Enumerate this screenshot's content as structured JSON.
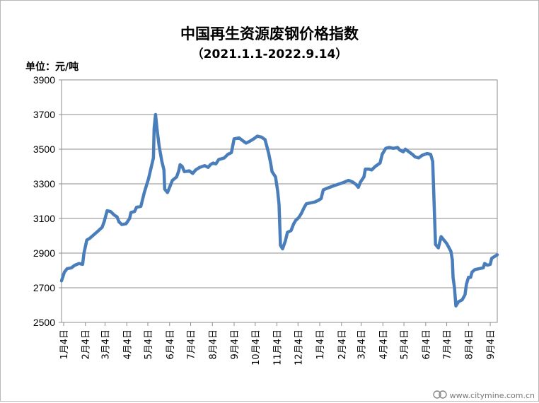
{
  "chart_data": {
    "type": "line",
    "title": "中国再生资源废钢价格指数",
    "subtitle": "（2021.1.1-2022.9.14）",
    "unit_label": "单位：元/吨",
    "ylim": [
      2500,
      3900
    ],
    "yticks": [
      2500,
      2700,
      2900,
      3100,
      3300,
      3500,
      3700,
      3900
    ],
    "grid": true,
    "legend": "none",
    "line_color": "#4a7ebb",
    "x_tick_labels": [
      "1月4日",
      "2月4日",
      "3月4日",
      "4月4日",
      "5月4日",
      "6月4日",
      "7月4日",
      "8月4日",
      "9月4日",
      "10月4日",
      "11月4日",
      "12月4日",
      "1月4日",
      "2月4日",
      "3月4日",
      "4月4日",
      "5月4日",
      "6月4日",
      "7月4日",
      "8月4日",
      "9月4日"
    ],
    "x_tick_dates": [
      "2021-01-04",
      "2021-02-04",
      "2021-03-04",
      "2021-04-04",
      "2021-05-04",
      "2021-06-04",
      "2021-07-04",
      "2021-08-04",
      "2021-09-04",
      "2021-10-04",
      "2021-11-04",
      "2021-12-04",
      "2022-01-04",
      "2022-02-04",
      "2022-03-04",
      "2022-04-04",
      "2022-05-04",
      "2022-06-04",
      "2022-07-04",
      "2022-08-04",
      "2022-09-04"
    ],
    "x_start": "2021-01-01",
    "x_end": "2022-09-14",
    "series": [
      {
        "name": "",
        "points": [
          [
            "2021-01-01",
            2740
          ],
          [
            "2021-01-05",
            2790
          ],
          [
            "2021-01-09",
            2810
          ],
          [
            "2021-01-15",
            2815
          ],
          [
            "2021-01-20",
            2830
          ],
          [
            "2021-01-26",
            2840
          ],
          [
            "2021-01-31",
            2835
          ],
          [
            "2021-02-02",
            2900
          ],
          [
            "2021-02-06",
            2975
          ],
          [
            "2021-02-10",
            2985
          ],
          [
            "2021-02-20",
            3020
          ],
          [
            "2021-02-28",
            3050
          ],
          [
            "2021-03-03",
            3085
          ],
          [
            "2021-03-07",
            3145
          ],
          [
            "2021-03-12",
            3140
          ],
          [
            "2021-03-17",
            3120
          ],
          [
            "2021-03-21",
            3110
          ],
          [
            "2021-03-24",
            3080
          ],
          [
            "2021-03-28",
            3065
          ],
          [
            "2021-04-03",
            3070
          ],
          [
            "2021-04-08",
            3100
          ],
          [
            "2021-04-10",
            3135
          ],
          [
            "2021-04-15",
            3140
          ],
          [
            "2021-04-18",
            3165
          ],
          [
            "2021-04-24",
            3170
          ],
          [
            "2021-04-29",
            3250
          ],
          [
            "2021-05-05",
            3330
          ],
          [
            "2021-05-12",
            3450
          ],
          [
            "2021-05-13",
            3620
          ],
          [
            "2021-05-15",
            3700
          ],
          [
            "2021-05-17",
            3620
          ],
          [
            "2021-05-20",
            3520
          ],
          [
            "2021-05-24",
            3430
          ],
          [
            "2021-05-27",
            3380
          ],
          [
            "2021-05-28",
            3270
          ],
          [
            "2021-06-01",
            3250
          ],
          [
            "2021-06-05",
            3290
          ],
          [
            "2021-06-08",
            3320
          ],
          [
            "2021-06-14",
            3340
          ],
          [
            "2021-06-17",
            3375
          ],
          [
            "2021-06-19",
            3410
          ],
          [
            "2021-06-22",
            3400
          ],
          [
            "2021-06-25",
            3370
          ],
          [
            "2021-07-02",
            3375
          ],
          [
            "2021-07-07",
            3360
          ],
          [
            "2021-07-11",
            3380
          ],
          [
            "2021-07-17",
            3395
          ],
          [
            "2021-07-24",
            3405
          ],
          [
            "2021-07-29",
            3395
          ],
          [
            "2021-08-01",
            3410
          ],
          [
            "2021-08-05",
            3420
          ],
          [
            "2021-08-09",
            3415
          ],
          [
            "2021-08-13",
            3440
          ],
          [
            "2021-08-21",
            3450
          ],
          [
            "2021-08-26",
            3470
          ],
          [
            "2021-08-31",
            3480
          ],
          [
            "2021-09-04",
            3560
          ],
          [
            "2021-09-11",
            3565
          ],
          [
            "2021-09-16",
            3550
          ],
          [
            "2021-09-21",
            3535
          ],
          [
            "2021-09-26",
            3545
          ],
          [
            "2021-10-02",
            3560
          ],
          [
            "2021-10-07",
            3575
          ],
          [
            "2021-10-13",
            3570
          ],
          [
            "2021-10-18",
            3555
          ],
          [
            "2021-10-23",
            3480
          ],
          [
            "2021-10-26",
            3420
          ],
          [
            "2021-10-28",
            3370
          ],
          [
            "2021-11-02",
            3340
          ],
          [
            "2021-11-05",
            3260
          ],
          [
            "2021-11-07",
            3180
          ],
          [
            "2021-11-09",
            2945
          ],
          [
            "2021-11-12",
            2925
          ],
          [
            "2021-11-16",
            2970
          ],
          [
            "2021-11-19",
            3020
          ],
          [
            "2021-11-24",
            3030
          ],
          [
            "2021-11-28",
            3070
          ],
          [
            "2021-12-01",
            3090
          ],
          [
            "2021-12-05",
            3105
          ],
          [
            "2021-12-09",
            3130
          ],
          [
            "2021-12-13",
            3165
          ],
          [
            "2021-12-16",
            3185
          ],
          [
            "2021-12-22",
            3190
          ],
          [
            "2021-12-28",
            3195
          ],
          [
            "2022-01-02",
            3205
          ],
          [
            "2022-01-06",
            3215
          ],
          [
            "2022-01-09",
            3265
          ],
          [
            "2022-01-15",
            3275
          ],
          [
            "2022-01-25",
            3290
          ],
          [
            "2022-02-05",
            3305
          ],
          [
            "2022-02-14",
            3320
          ],
          [
            "2022-02-20",
            3310
          ],
          [
            "2022-02-25",
            3295
          ],
          [
            "2022-02-28",
            3280
          ],
          [
            "2022-03-03",
            3310
          ],
          [
            "2022-03-08",
            3340
          ],
          [
            "2022-03-10",
            3385
          ],
          [
            "2022-03-15",
            3385
          ],
          [
            "2022-03-19",
            3380
          ],
          [
            "2022-03-24",
            3400
          ],
          [
            "2022-03-31",
            3420
          ],
          [
            "2022-04-03",
            3470
          ],
          [
            "2022-04-08",
            3505
          ],
          [
            "2022-04-13",
            3510
          ],
          [
            "2022-04-19",
            3505
          ],
          [
            "2022-04-25",
            3510
          ],
          [
            "2022-04-28",
            3495
          ],
          [
            "2022-05-03",
            3485
          ],
          [
            "2022-05-06",
            3500
          ],
          [
            "2022-05-11",
            3485
          ],
          [
            "2022-05-16",
            3470
          ],
          [
            "2022-05-20",
            3455
          ],
          [
            "2022-05-25",
            3450
          ],
          [
            "2022-05-30",
            3465
          ],
          [
            "2022-06-06",
            3475
          ],
          [
            "2022-06-11",
            3470
          ],
          [
            "2022-06-14",
            3430
          ],
          [
            "2022-06-18",
            2950
          ],
          [
            "2022-06-22",
            2930
          ],
          [
            "2022-06-26",
            2995
          ],
          [
            "2022-07-04",
            2955
          ],
          [
            "2022-07-10",
            2910
          ],
          [
            "2022-07-12",
            2860
          ],
          [
            "2022-07-13",
            2760
          ],
          [
            "2022-07-15",
            2700
          ],
          [
            "2022-07-17",
            2595
          ],
          [
            "2022-07-21",
            2620
          ],
          [
            "2022-07-26",
            2630
          ],
          [
            "2022-07-30",
            2660
          ],
          [
            "2022-08-01",
            2720
          ],
          [
            "2022-08-04",
            2760
          ],
          [
            "2022-08-07",
            2760
          ],
          [
            "2022-08-09",
            2790
          ],
          [
            "2022-08-13",
            2805
          ],
          [
            "2022-08-19",
            2810
          ],
          [
            "2022-08-25",
            2815
          ],
          [
            "2022-08-27",
            2840
          ],
          [
            "2022-08-31",
            2830
          ],
          [
            "2022-09-04",
            2835
          ],
          [
            "2022-09-06",
            2870
          ],
          [
            "2022-09-10",
            2880
          ],
          [
            "2022-09-14",
            2890
          ]
        ]
      }
    ]
  },
  "watermark": {
    "text": "www.citymine.com.cn"
  }
}
